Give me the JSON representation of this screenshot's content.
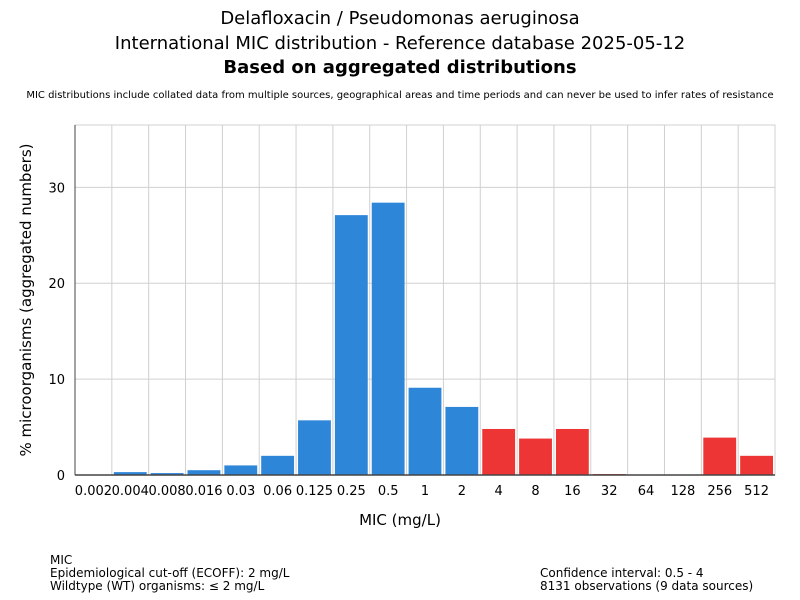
{
  "chart_data": {
    "type": "bar",
    "title": "Delafloxacin / Pseudomonas aeruginosa",
    "subtitle": "International MIC distribution - Reference database 2025-05-12",
    "subtitle2": "Based on aggregated distributions",
    "note": "MIC distributions include collated data from multiple sources, geographical areas and time periods and can never be used to infer rates of resistance",
    "xlabel": "MIC (mg/L)",
    "ylabel": "% microorganisms (aggregated numbers)",
    "ylim": [
      0,
      36.5
    ],
    "yticks": [
      0,
      10,
      20,
      30
    ],
    "grid": true,
    "categories": [
      "0.002",
      "0.004",
      "0.008",
      "0.016",
      "0.03",
      "0.06",
      "0.125",
      "0.25",
      "0.5",
      "1",
      "2",
      "4",
      "8",
      "16",
      "32",
      "64",
      "128",
      "256",
      "512"
    ],
    "values": [
      0,
      0.3,
      0.2,
      0.5,
      1.0,
      2.0,
      5.7,
      27.1,
      28.4,
      9.1,
      7.1,
      4.8,
      3.8,
      4.8,
      0.1,
      0,
      0,
      3.9,
      2.0
    ],
    "ecoff_index": 10,
    "colors": {
      "wildtype": "#2e86d9",
      "non_wildtype": "#ee3535"
    }
  },
  "footer": {
    "left": [
      "MIC",
      "Epidemiological cut-off (ECOFF): 2 mg/L",
      "Wildtype (WT) organisms: ≤ 2 mg/L"
    ],
    "right": [
      "Confidence interval: 0.5 - 4",
      "8131 observations (9 data sources)"
    ]
  }
}
